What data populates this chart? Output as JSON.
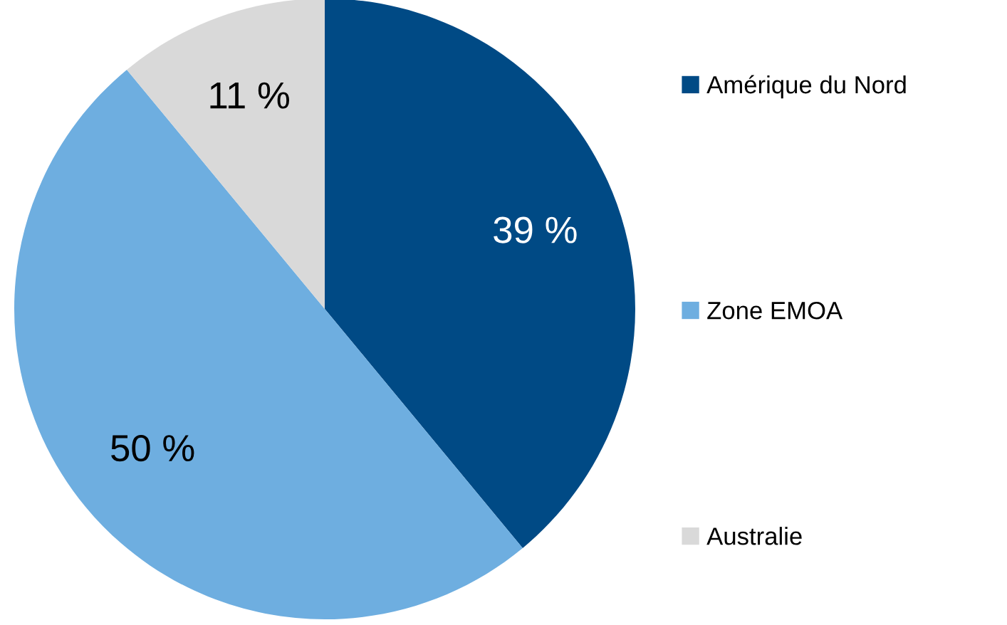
{
  "chart_data": {
    "type": "pie",
    "categories": [
      "Amérique du Nord",
      "Zone EMOA",
      "Australie"
    ],
    "values": [
      39,
      50,
      11
    ],
    "colors": [
      "#004a85",
      "#6eaee0",
      "#d9d9d9"
    ],
    "value_labels": [
      "39 %",
      "50 %",
      "11 %"
    ],
    "legend": "right"
  }
}
